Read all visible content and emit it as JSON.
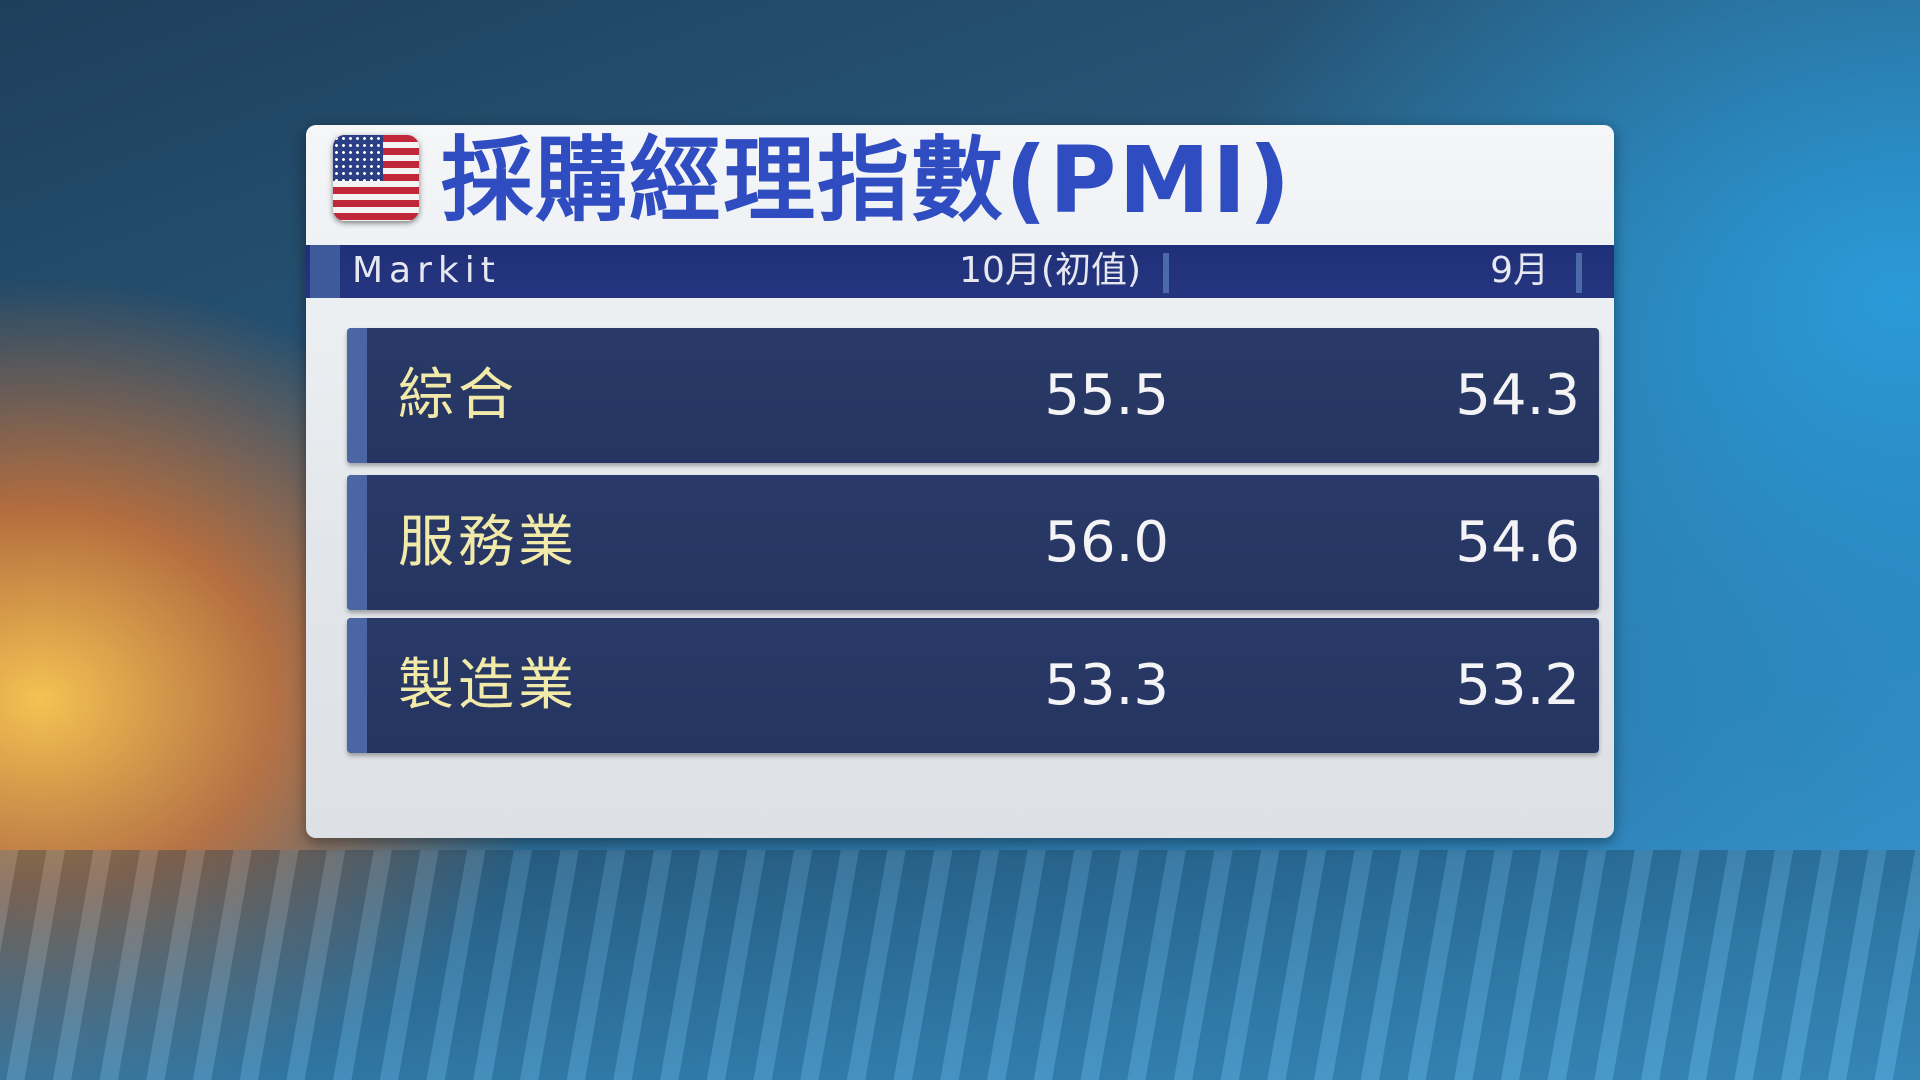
{
  "title": "採購經理指數(PMI)",
  "flag_icon": "us-flag-icon",
  "header": {
    "source": "Markit",
    "col1": "10月(初值)",
    "col2": "9月"
  },
  "rows": [
    {
      "label": "綜合",
      "oct": "55.5",
      "sep": "54.3"
    },
    {
      "label": "服務業",
      "oct": "56.0",
      "sep": "54.6"
    },
    {
      "label": "製造業",
      "oct": "53.3",
      "sep": "53.2"
    }
  ],
  "colors": {
    "title": "#2f4cc0",
    "header_bg": "#1f2f78",
    "row_bg": "#2a3a68",
    "label": "#f2eaa8",
    "value": "#f4f4f6"
  }
}
